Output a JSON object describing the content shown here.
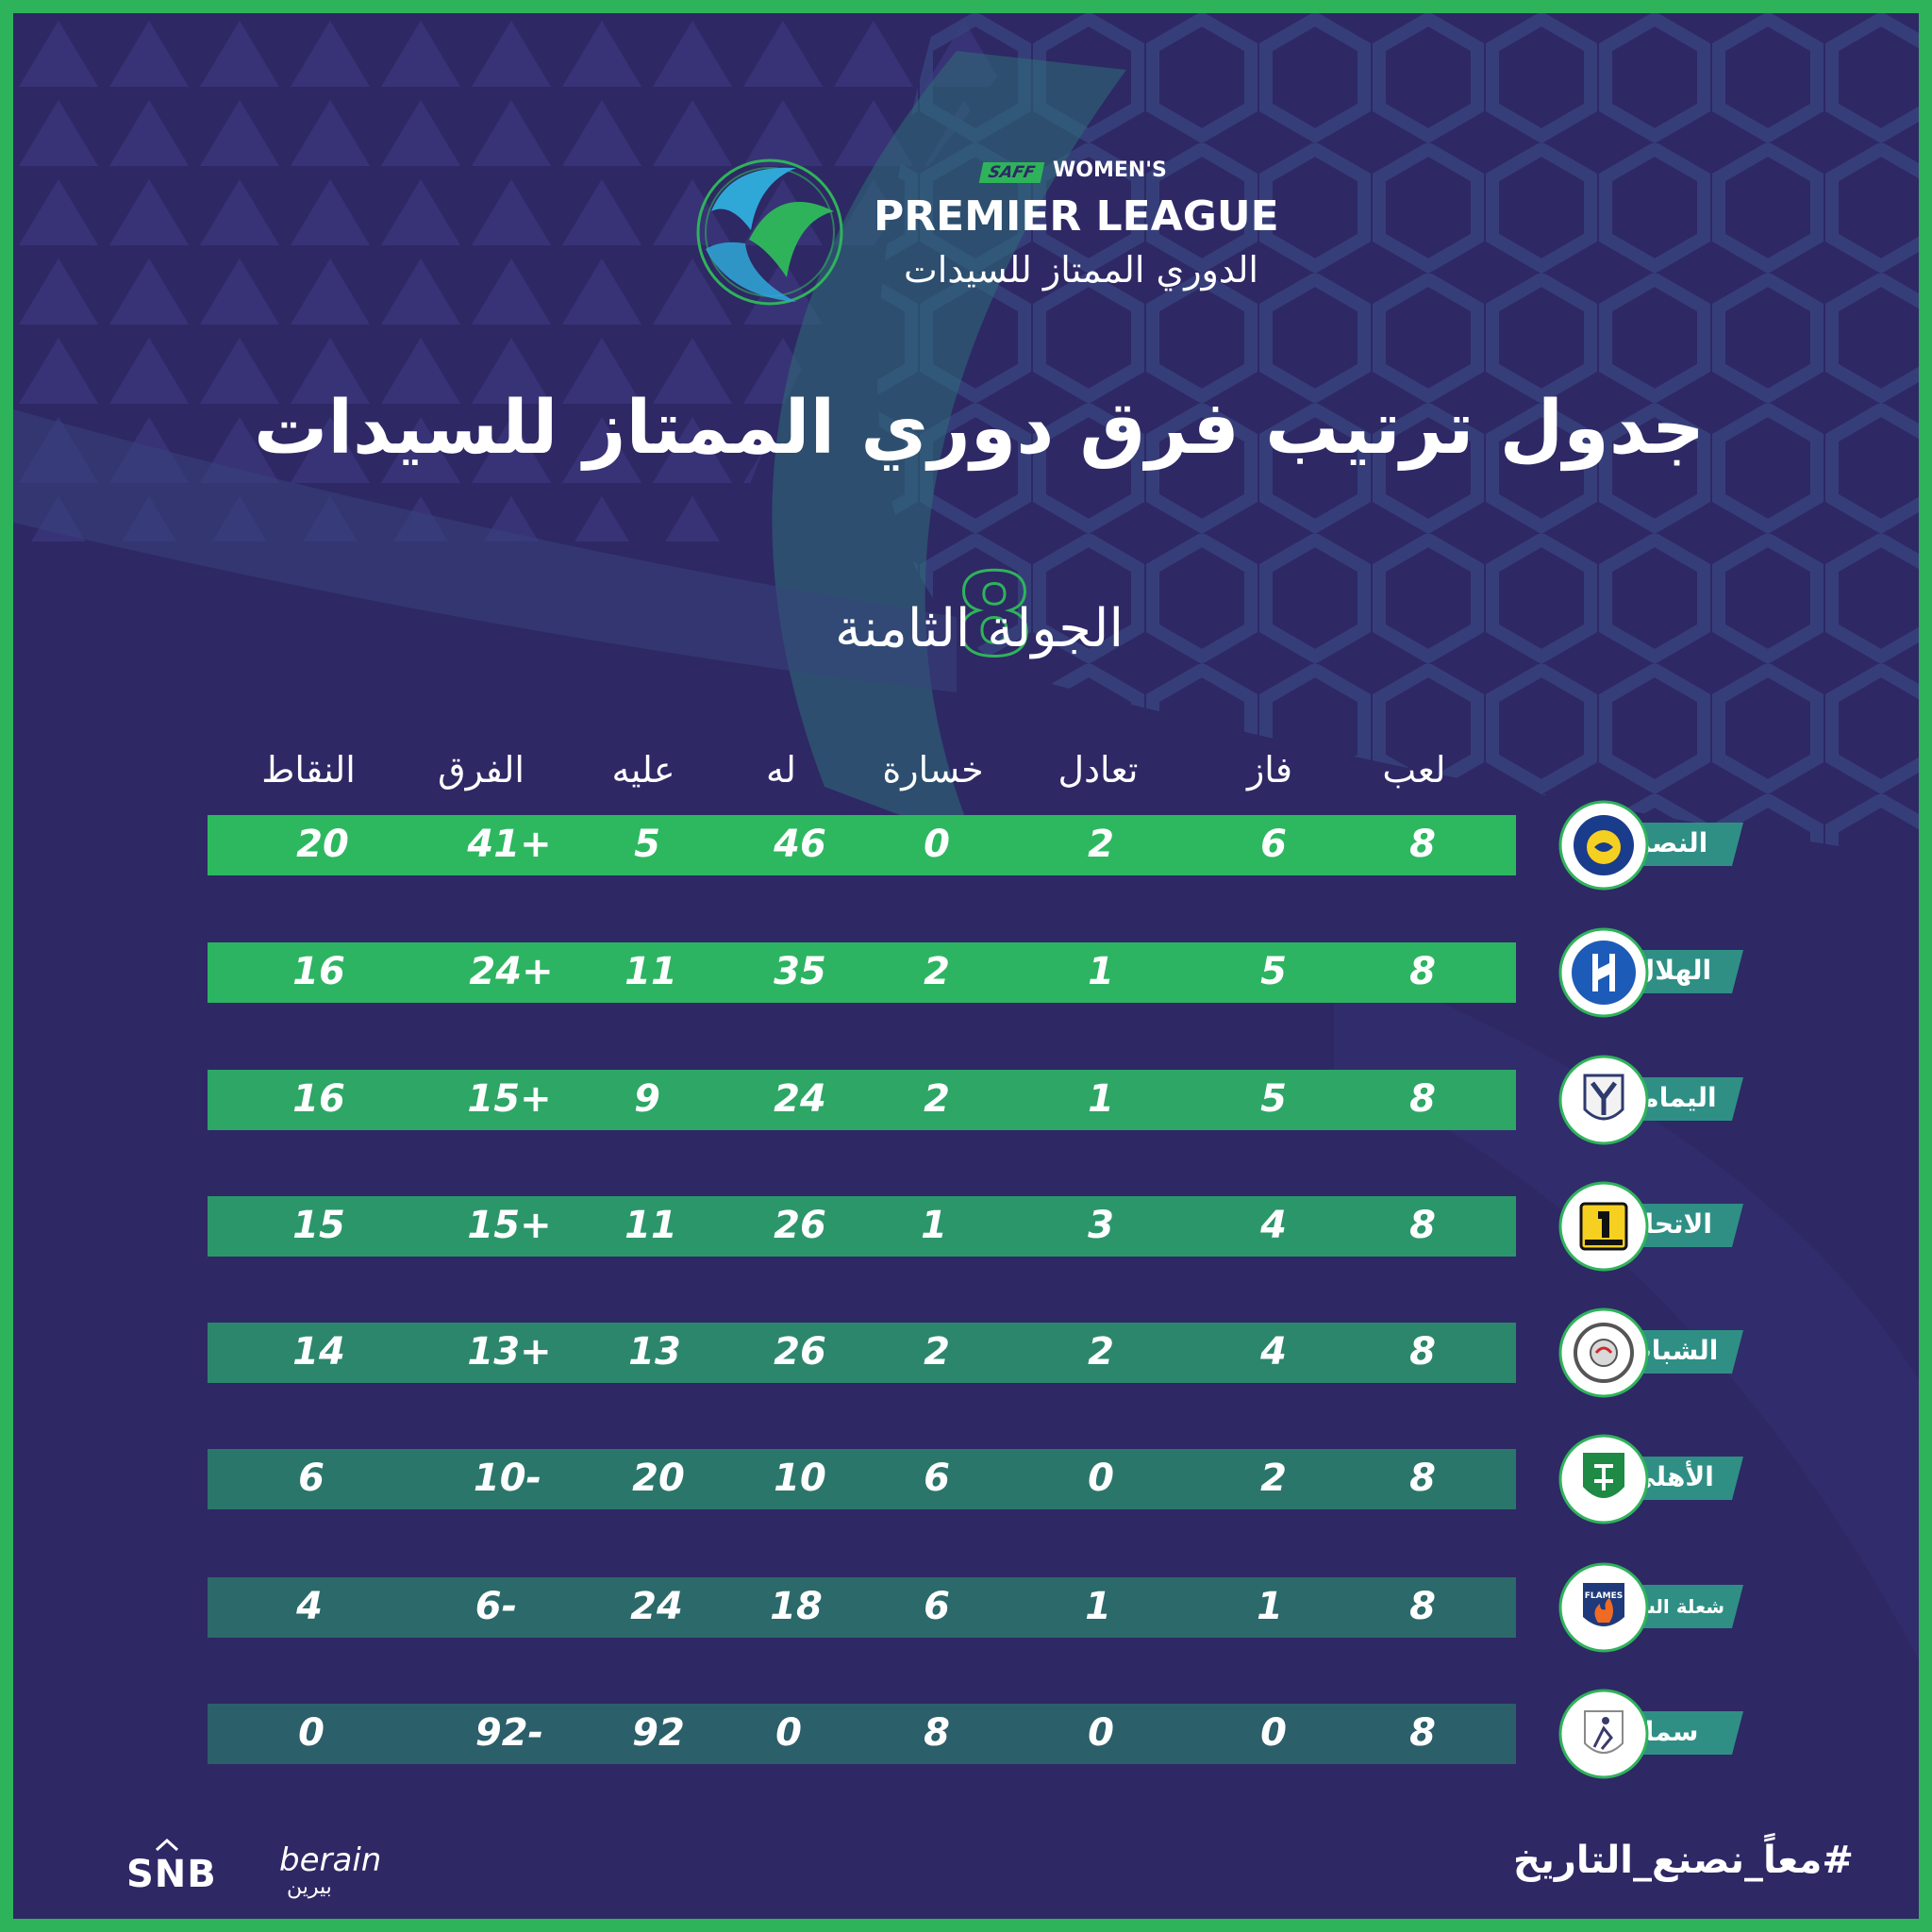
{
  "colors": {
    "background": "#2e2865",
    "frame": "#2fb35a",
    "row_top": "#2db860",
    "row_bottom": "#2b5f6a",
    "teal_accent": "#2f8f85"
  },
  "logo": {
    "saff": "SAFF",
    "womens": "WOMEN'S",
    "premier": "PREMIER LEAGUE",
    "arabic": "الدوري الممتاز للسيدات"
  },
  "title": "جدول ترتيب فرق دوري الممتاز للسيدات",
  "round": {
    "label": "الجولة الثامنة",
    "number": "8"
  },
  "columns": {
    "played": "لعب",
    "won": "فاز",
    "drawn": "تعادل",
    "lost": "خسارة",
    "for": "له",
    "against": "عليه",
    "diff": "الفرق",
    "points": "النقاط"
  },
  "standings": [
    {
      "team": "النصر",
      "badge_icon": "al-nassr-badge-icon",
      "played": "8",
      "won": "6",
      "drawn": "2",
      "lost": "0",
      "for": "46",
      "against": "5",
      "diff": "41+",
      "points": "20"
    },
    {
      "team": "الهلال",
      "badge_icon": "al-hilal-badge-icon",
      "played": "8",
      "won": "5",
      "drawn": "1",
      "lost": "2",
      "for": "35",
      "against": "11",
      "diff": "24+",
      "points": "16"
    },
    {
      "team": "اليمامة",
      "badge_icon": "al-yamamah-badge-icon",
      "played": "8",
      "won": "5",
      "drawn": "1",
      "lost": "2",
      "for": "24",
      "against": "9",
      "diff": "15+",
      "points": "16"
    },
    {
      "team": "الاتحاد",
      "badge_icon": "al-ittihad-badge-icon",
      "played": "8",
      "won": "4",
      "drawn": "3",
      "lost": "1",
      "for": "26",
      "against": "11",
      "diff": "15+",
      "points": "15"
    },
    {
      "team": "الشباب",
      "badge_icon": "al-shabab-badge-icon",
      "played": "8",
      "won": "4",
      "drawn": "2",
      "lost": "2",
      "for": "26",
      "against": "13",
      "diff": "13+",
      "points": "14"
    },
    {
      "team": "الأهلي",
      "badge_icon": "al-ahli-badge-icon",
      "played": "8",
      "won": "2",
      "drawn": "0",
      "lost": "6",
      "for": "10",
      "against": "20",
      "diff": "10-",
      "points": "6"
    },
    {
      "team": "شعلة الشرقية",
      "badge_icon": "eastern-flames-badge-icon",
      "badge_text": "FLAMES",
      "played": "8",
      "won": "1",
      "drawn": "1",
      "lost": "6",
      "for": "18",
      "against": "24",
      "diff": "6-",
      "points": "4"
    },
    {
      "team": "سما",
      "badge_icon": "sama-badge-icon",
      "played": "8",
      "won": "0",
      "drawn": "0",
      "lost": "8",
      "for": "0",
      "against": "92",
      "diff": "92-",
      "points": "0"
    }
  ],
  "hashtag": "#معاً_نصنع_التاريخ",
  "sponsors": {
    "snb": "SNB",
    "berain": "berain",
    "berain_ar": "بيرين"
  }
}
